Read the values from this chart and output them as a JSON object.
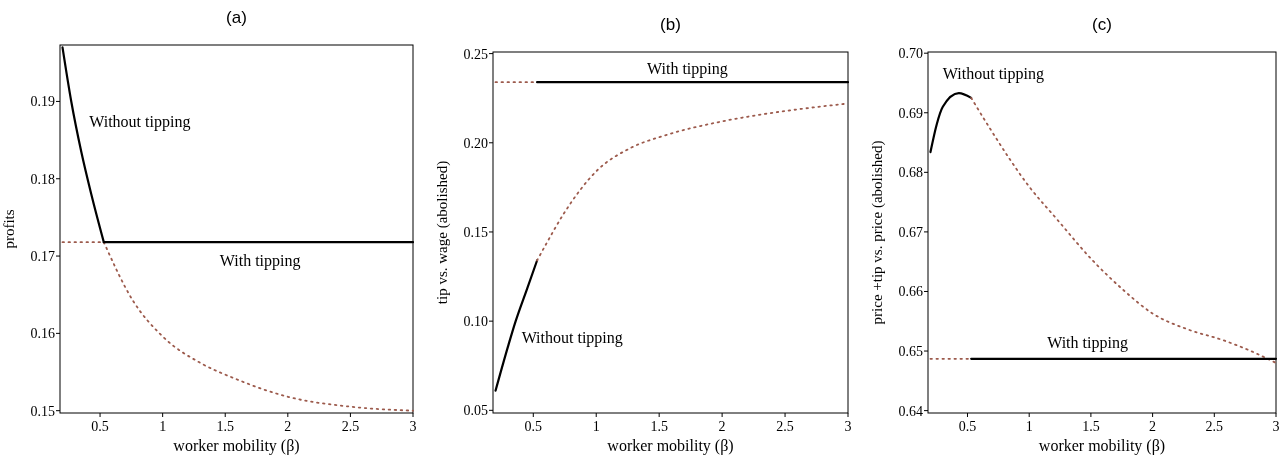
{
  "chart_data": [
    {
      "type": "line",
      "title": "(a)",
      "xlabel": "worker mobility (β)",
      "ylabel": "profits",
      "xlim": [
        0.18,
        3
      ],
      "ylim": [
        0.1497,
        0.1973
      ],
      "xticks": [
        0.5,
        1,
        1.5,
        2,
        2.5,
        3
      ],
      "yticks": [
        0.15,
        0.16,
        0.17,
        0.18,
        0.19
      ],
      "grid": false,
      "legend": false,
      "series": [
        {
          "name": "Without tipping",
          "color": "#000000",
          "line_style": "solid",
          "x": [
            0.2,
            0.27,
            0.35,
            0.43,
            0.53
          ],
          "values": [
            0.197,
            0.19,
            0.1835,
            0.178,
            0.1718
          ]
        },
        {
          "color": "#9c5a4c",
          "line_style": "dotted",
          "x": [
            0.53,
            0.76,
            1.0,
            1.31,
            1.57,
            2.0,
            2.51,
            3.0
          ],
          "values": [
            0.1718,
            0.1643,
            0.1596,
            0.1561,
            0.1542,
            0.1518,
            0.1505,
            0.15
          ]
        },
        {
          "color": "#9c5a4c",
          "line_style": "dotted",
          "x": [
            0.2,
            0.53
          ],
          "values": [
            0.1718,
            0.1718
          ]
        },
        {
          "name": "With tipping",
          "color": "#000000",
          "line_style": "solid",
          "x": [
            0.53,
            3.0
          ],
          "values": [
            0.1718,
            0.1718
          ]
        }
      ]
    },
    {
      "type": "line",
      "title": "(b)",
      "xlabel": "worker mobility (β)",
      "ylabel": "tip vs. wage (abolished)",
      "xlim": [
        0.18,
        3
      ],
      "ylim": [
        0.0485,
        0.2509
      ],
      "xticks": [
        0.5,
        1,
        1.5,
        2,
        2.5,
        3
      ],
      "yticks": [
        0.05,
        {
          "value": 0.1,
          "label": "0.10"
        },
        0.15,
        {
          "value": 0.2,
          "label": "0.20"
        },
        0.25
      ],
      "grid": false,
      "legend": false,
      "series": [
        {
          "name": "Without tipping",
          "color": "#000000",
          "line_style": "solid",
          "x": [
            0.2,
            0.3,
            0.36,
            0.45,
            0.53
          ],
          "values": [
            0.061,
            0.086,
            0.1,
            0.118,
            0.134
          ]
        },
        {
          "color": "#9c5a4c",
          "line_style": "dotted",
          "x": [
            0.53,
            0.6,
            0.74,
            1.0,
            1.27,
            1.54,
            2.0,
            2.47,
            3.0
          ],
          "values": [
            0.134,
            0.143,
            0.16,
            0.184,
            0.197,
            0.204,
            0.212,
            0.2175,
            0.222
          ]
        },
        {
          "color": "#9c5a4c",
          "line_style": "dotted",
          "x": [
            0.2,
            0.53
          ],
          "values": [
            0.234,
            0.234
          ]
        },
        {
          "name": "With tipping",
          "color": "#000000",
          "line_style": "solid",
          "x": [
            0.53,
            3.0
          ],
          "values": [
            0.234,
            0.234
          ]
        }
      ]
    },
    {
      "type": "line",
      "title": "(c)",
      "xlabel": "worker mobility (β)",
      "ylabel": "price +tip vs. price (abolished)",
      "xlim": [
        0.18,
        3
      ],
      "ylim": [
        0.6396,
        0.7002
      ],
      "xticks": [
        0.5,
        1,
        1.5,
        2,
        2.5,
        3
      ],
      "yticks": [
        0.64,
        0.65,
        0.66,
        0.67,
        0.68,
        0.69,
        {
          "value": 0.7,
          "label": "0.70"
        }
      ],
      "grid": false,
      "legend": false,
      "series": [
        {
          "name": "Without tipping",
          "color": "#000000",
          "line_style": "solid",
          "x": [
            0.2,
            0.25,
            0.3,
            0.43,
            0.53
          ],
          "values": [
            0.6834,
            0.688,
            0.691,
            0.6933,
            0.6925
          ]
        },
        {
          "color": "#9c5a4c",
          "line_style": "dotted",
          "x": [
            0.53,
            0.69,
            1.0,
            1.23,
            1.51,
            1.76,
            2.0,
            2.29,
            2.56,
            2.83,
            3.0
          ],
          "values": [
            0.6925,
            0.6871,
            0.6776,
            0.672,
            0.6653,
            0.6603,
            0.6563,
            0.6536,
            0.6519,
            0.6497,
            0.648
          ]
        },
        {
          "color": "#9c5a4c",
          "line_style": "dotted",
          "x": [
            0.2,
            0.53
          ],
          "values": [
            0.6487,
            0.6487
          ]
        },
        {
          "name": "With tipping",
          "color": "#000000",
          "line_style": "solid",
          "x": [
            0.53,
            3.0
          ],
          "values": [
            0.6487,
            0.6487
          ]
        }
      ]
    }
  ]
}
